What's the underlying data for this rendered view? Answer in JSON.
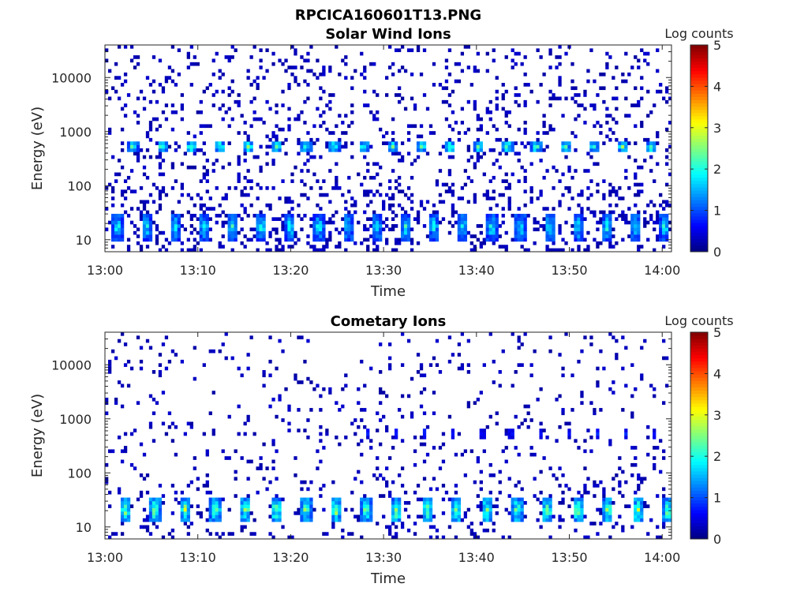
{
  "figure_title": "RPCICA160601T13.PNG",
  "chart_data": [
    {
      "type": "heatmap",
      "id": "solar",
      "title": "Solar Wind Ions",
      "xlabel": "Time",
      "ylabel": "Energy (eV)",
      "x_ticks": [
        "13:00",
        "13:10",
        "13:20",
        "13:30",
        "13:40",
        "13:50",
        "14:00"
      ],
      "x_range_min": [
        0,
        61
      ],
      "y_ticks": [
        "10",
        "100",
        "1000",
        "10000"
      ],
      "y_tick_values": [
        10,
        100,
        1000,
        10000
      ],
      "y_range_ev": [
        6,
        40000
      ],
      "y_scale": "log",
      "colorbar": {
        "label": "Log counts",
        "ticks": [
          "0",
          "1",
          "2",
          "3",
          "4",
          "5"
        ],
        "range": [
          0,
          5
        ],
        "colormap": "jet"
      },
      "features": {
        "low_energy_blobs": {
          "energy_ev": [
            10,
            30
          ],
          "period_min": 3.1,
          "start_min": 0.8,
          "peak_log_counts": 2.0
        },
        "mid_energy_blobs": {
          "energy_ev": [
            400,
            700
          ],
          "period_min": 3.1,
          "start_min": 2.5,
          "peak_log_counts": 2.3
        },
        "background_noise_log_counts": 0.2
      }
    },
    {
      "type": "heatmap",
      "id": "comet",
      "title": "Cometary Ions",
      "xlabel": "Time",
      "ylabel": "Energy (eV)",
      "x_ticks": [
        "13:00",
        "13:10",
        "13:20",
        "13:30",
        "13:40",
        "13:50",
        "14:00"
      ],
      "x_range_min": [
        0,
        61
      ],
      "y_ticks": [
        "10",
        "100",
        "1000",
        "10000"
      ],
      "y_tick_values": [
        10,
        100,
        1000,
        10000
      ],
      "y_range_ev": [
        6,
        40000
      ],
      "y_scale": "log",
      "colorbar": {
        "label": "Log counts",
        "ticks": [
          "0",
          "1",
          "2",
          "3",
          "4",
          "5"
        ],
        "range": [
          0,
          5
        ],
        "colormap": "jet"
      },
      "features": {
        "low_energy_blobs": {
          "energy_ev": [
            12,
            35
          ],
          "period_min": 3.25,
          "start_min": 1.6,
          "peak_log_counts": 2.6
        },
        "mid_energy_spots": {
          "energy_ev": [
            450,
            650
          ],
          "period_min": 3.1,
          "start_min": 28,
          "peak_log_counts": 1.0
        },
        "background_noise_log_counts": 0.1
      }
    }
  ]
}
